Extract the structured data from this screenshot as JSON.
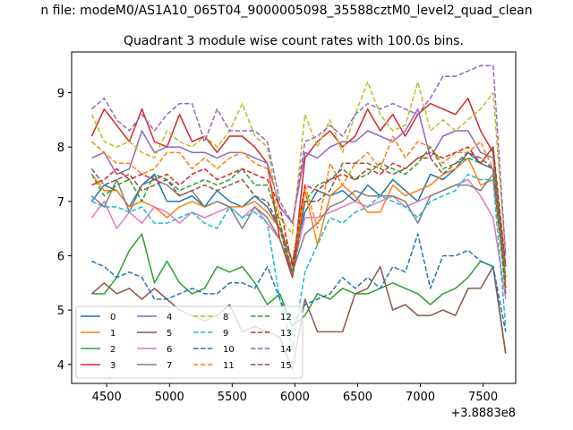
{
  "suptitle": "n file: modeM0/AS1A10_065T04_9000005098_35588cztM0_level2_quad_clean",
  "chart_data": {
    "type": "line",
    "title": "Quadrant 3 module wise count rates with 100.0s bins.",
    "xlabel": "",
    "ylabel": "",
    "x_offset_label": "+3.8883e8",
    "xlim": [
      4220,
      7760
    ],
    "ylim": [
      3.65,
      9.75
    ],
    "xticks": [
      4500,
      5000,
      5500,
      6000,
      6500,
      7000,
      7500
    ],
    "yticks": [
      4,
      5,
      6,
      7,
      8,
      9
    ],
    "legend_position": "lower-left",
    "legend_columns": 4,
    "x": [
      4380,
      4480,
      4580,
      4680,
      4780,
      4880,
      4980,
      5080,
      5180,
      5280,
      5380,
      5480,
      5580,
      5680,
      5780,
      5880,
      5980,
      6080,
      6180,
      6280,
      6380,
      6480,
      6580,
      6680,
      6780,
      6880,
      6980,
      7080,
      7180,
      7280,
      7380,
      7480,
      7580,
      7680
    ],
    "series": [
      {
        "name": "0",
        "color": "#1f77b4",
        "dash": "solid",
        "values": [
          7.0,
          7.3,
          7.2,
          6.9,
          7.3,
          7.5,
          7.0,
          7.0,
          7.1,
          6.9,
          7.2,
          7.0,
          6.9,
          7.1,
          6.9,
          6.5,
          5.9,
          6.8,
          7.2,
          7.1,
          7.2,
          7.0,
          7.3,
          7.1,
          7.4,
          7.2,
          7.0,
          7.5,
          7.4,
          7.6,
          7.9,
          7.7,
          7.6,
          5.6
        ]
      },
      {
        "name": "1",
        "color": "#ff7f0e",
        "dash": "solid",
        "values": [
          7.5,
          7.2,
          7.2,
          6.9,
          7.0,
          6.9,
          6.7,
          6.9,
          7.0,
          6.9,
          7.0,
          6.9,
          6.9,
          7.0,
          6.8,
          6.5,
          5.7,
          7.2,
          6.2,
          7.1,
          7.3,
          7.1,
          6.8,
          6.8,
          7.3,
          7.1,
          7.2,
          7.3,
          7.5,
          7.6,
          7.8,
          7.3,
          7.4,
          5.5
        ]
      },
      {
        "name": "2",
        "color": "#2ca02c",
        "dash": "solid",
        "values": [
          5.3,
          5.3,
          5.6,
          6.1,
          6.4,
          5.5,
          5.9,
          5.5,
          5.3,
          5.4,
          5.8,
          5.7,
          5.8,
          5.5,
          5.1,
          5.3,
          4.7,
          4.9,
          5.3,
          5.2,
          5.4,
          5.3,
          5.3,
          5.4,
          5.5,
          5.4,
          5.3,
          5.1,
          5.3,
          5.4,
          5.6,
          5.9,
          5.8,
          4.2
        ]
      },
      {
        "name": "3",
        "color": "#d62728",
        "dash": "solid",
        "values": [
          8.2,
          8.7,
          8.4,
          8.1,
          8.7,
          8.1,
          8.0,
          8.6,
          8.1,
          8.2,
          7.9,
          8.2,
          8.2,
          8.0,
          7.7,
          6.3,
          5.6,
          7.8,
          8.1,
          8.3,
          8.0,
          8.2,
          8.7,
          8.3,
          8.6,
          8.2,
          8.6,
          8.8,
          8.7,
          8.6,
          8.9,
          8.3,
          7.9,
          5.4
        ]
      },
      {
        "name": "4",
        "color": "#9467bd",
        "dash": "solid",
        "values": [
          7.8,
          7.9,
          7.5,
          7.6,
          8.3,
          7.9,
          8.0,
          8.0,
          7.9,
          7.9,
          7.8,
          7.9,
          7.9,
          7.8,
          7.7,
          6.9,
          6.6,
          7.9,
          7.8,
          8.0,
          8.1,
          8.1,
          8.3,
          8.2,
          8.1,
          8.3,
          8.7,
          7.8,
          8.2,
          8.3,
          8.3,
          7.9,
          7.8,
          5.8
        ]
      },
      {
        "name": "5",
        "color": "#8c564b",
        "dash": "solid",
        "values": [
          5.3,
          5.5,
          5.3,
          5.4,
          5.2,
          5.4,
          5.2,
          5.0,
          4.9,
          4.8,
          4.9,
          5.1,
          4.6,
          4.7,
          4.6,
          4.5,
          3.9,
          5.2,
          4.6,
          4.6,
          4.6,
          5.3,
          5.4,
          5.8,
          5.0,
          5.1,
          4.9,
          4.9,
          5.0,
          4.9,
          5.4,
          5.4,
          5.8,
          4.2
        ]
      },
      {
        "name": "6",
        "color": "#e377c2",
        "dash": "solid",
        "values": [
          6.7,
          7.0,
          6.5,
          6.8,
          6.6,
          6.9,
          6.8,
          6.6,
          6.8,
          6.7,
          6.8,
          6.9,
          6.7,
          6.9,
          6.6,
          6.3,
          5.7,
          6.7,
          6.7,
          6.8,
          6.9,
          7.0,
          6.9,
          7.0,
          7.1,
          6.9,
          7.0,
          7.1,
          7.2,
          7.3,
          7.4,
          7.1,
          6.7,
          5.2
        ]
      },
      {
        "name": "7",
        "color": "#7f7f7f",
        "dash": "solid",
        "values": [
          7.1,
          6.9,
          7.4,
          6.8,
          7.3,
          7.4,
          7.3,
          7.1,
          7.2,
          6.9,
          7.0,
          6.9,
          6.5,
          6.9,
          6.7,
          6.3,
          5.7,
          6.4,
          6.6,
          6.9,
          7.0,
          7.2,
          7.1,
          7.1,
          7.1,
          7.0,
          6.6,
          7.1,
          7.2,
          7.3,
          7.3,
          7.2,
          7.5,
          5.6
        ]
      },
      {
        "name": "8",
        "color": "#bcbd22",
        "dash": "dashed",
        "values": [
          8.6,
          8.1,
          8.0,
          8.1,
          7.9,
          7.8,
          8.3,
          8.1,
          8.0,
          8.2,
          8.0,
          8.3,
          8.8,
          8.2,
          8.0,
          6.7,
          6.4,
          8.6,
          8.0,
          8.5,
          7.9,
          8.6,
          9.2,
          8.6,
          8.3,
          8.4,
          9.2,
          8.3,
          8.5,
          8.3,
          8.5,
          8.7,
          9.0,
          6.0
        ]
      },
      {
        "name": "9",
        "color": "#17becf",
        "dash": "dashed",
        "values": [
          7.0,
          6.9,
          6.9,
          6.8,
          6.9,
          6.6,
          6.6,
          6.7,
          6.8,
          6.6,
          6.5,
          6.9,
          6.7,
          6.8,
          6.6,
          5.2,
          4.3,
          5.7,
          6.2,
          6.7,
          6.6,
          6.8,
          6.9,
          7.1,
          7.0,
          6.9,
          6.7,
          7.0,
          7.1,
          7.2,
          7.5,
          7.4,
          7.4,
          4.7
        ]
      },
      {
        "name": "10",
        "color": "#1f77b4",
        "dash": "dashed",
        "values": [
          5.9,
          5.8,
          5.6,
          5.7,
          5.6,
          5.2,
          5.2,
          5.3,
          5.4,
          5.3,
          5.3,
          5.5,
          5.5,
          5.4,
          5.8,
          5.2,
          4.7,
          5.1,
          5.2,
          5.3,
          5.6,
          5.4,
          5.6,
          5.4,
          5.8,
          5.7,
          6.4,
          5.4,
          6.0,
          6.0,
          6.1,
          5.9,
          5.8,
          4.6
        ]
      },
      {
        "name": "11",
        "color": "#ff7f0e",
        "dash": "dashed",
        "values": [
          8.1,
          7.9,
          7.7,
          7.7,
          7.5,
          7.6,
          7.9,
          7.9,
          7.6,
          7.8,
          7.6,
          7.8,
          7.9,
          7.7,
          7.6,
          6.6,
          5.9,
          7.3,
          6.5,
          7.7,
          7.3,
          7.7,
          7.9,
          7.6,
          8.2,
          7.8,
          8.1,
          8.0,
          7.7,
          7.9,
          7.9,
          8.1,
          7.6,
          5.4
        ]
      },
      {
        "name": "12",
        "color": "#2ca02c",
        "dash": "dashed",
        "values": [
          7.5,
          7.1,
          7.3,
          7.4,
          7.0,
          7.5,
          7.4,
          7.2,
          7.3,
          7.4,
          7.3,
          7.4,
          7.6,
          7.3,
          7.3,
          6.6,
          5.7,
          7.0,
          7.3,
          7.4,
          7.6,
          7.4,
          7.5,
          7.7,
          7.6,
          7.5,
          7.7,
          8.0,
          7.6,
          7.7,
          7.8,
          7.7,
          8.0,
          5.5
        ]
      },
      {
        "name": "13",
        "color": "#d62728",
        "dash": "dashed",
        "values": [
          7.3,
          7.4,
          7.6,
          7.4,
          7.5,
          7.4,
          7.5,
          7.3,
          7.5,
          7.6,
          7.4,
          7.5,
          7.6,
          7.5,
          7.4,
          6.9,
          5.8,
          7.3,
          7.2,
          7.4,
          7.5,
          7.4,
          7.6,
          7.5,
          7.7,
          7.6,
          7.8,
          7.9,
          7.8,
          7.9,
          8.0,
          7.7,
          8.0,
          5.8
        ]
      },
      {
        "name": "14",
        "color": "#9467bd",
        "dash": "dashed",
        "values": [
          8.7,
          8.9,
          8.5,
          8.3,
          8.6,
          8.3,
          8.6,
          8.8,
          8.8,
          8.1,
          8.7,
          8.3,
          8.3,
          8.3,
          8.1,
          7.0,
          6.6,
          8.1,
          8.2,
          8.4,
          8.2,
          8.6,
          8.8,
          8.7,
          8.8,
          8.7,
          8.6,
          8.9,
          9.3,
          9.3,
          9.4,
          9.5,
          9.5,
          6.0
        ]
      },
      {
        "name": "15",
        "color": "#8c564b",
        "dash": "dashed",
        "values": [
          7.6,
          7.3,
          7.4,
          7.5,
          7.2,
          7.3,
          7.4,
          7.1,
          7.2,
          7.3,
          7.2,
          7.3,
          7.4,
          7.1,
          7.0,
          6.5,
          5.6,
          7.0,
          7.0,
          7.2,
          7.7,
          7.7,
          7.7,
          7.6,
          7.5,
          7.6,
          7.8,
          7.8,
          7.5,
          7.7,
          7.9,
          7.8,
          7.6,
          5.3
        ]
      }
    ]
  }
}
